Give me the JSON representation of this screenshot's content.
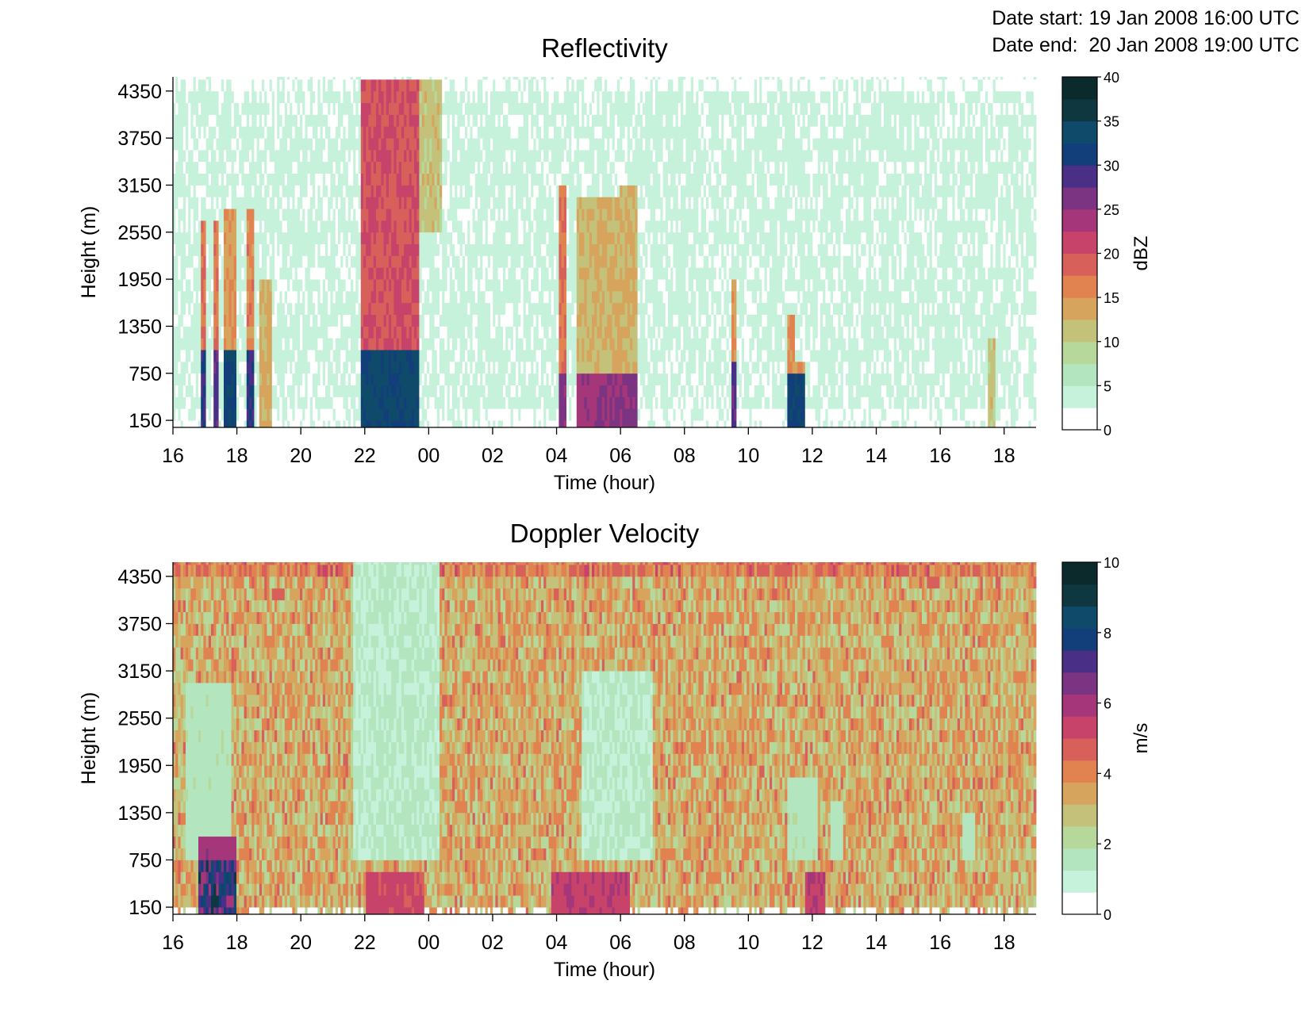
{
  "header": {
    "date_start_label": "Date start:",
    "date_start_value": "19 Jan 2008 16:00 UTC",
    "date_end_label": "Date end:",
    "date_end_value": "20 Jan 2008 19:00 UTC"
  },
  "chart_data": [
    {
      "type": "heatmap",
      "title": "Reflectivity",
      "xlabel": "Time (hour)",
      "ylabel": "Height (m)",
      "x_ticks": [
        "16",
        "18",
        "20",
        "22",
        "00",
        "02",
        "04",
        "06",
        "08",
        "10",
        "12",
        "14",
        "16",
        "18"
      ],
      "y_ticks": [
        "150",
        "750",
        "1350",
        "1950",
        "2550",
        "3150",
        "3750",
        "4350"
      ],
      "y_tick_values": [
        150,
        750,
        1350,
        1950,
        2550,
        3150,
        3750,
        4350
      ],
      "x_range_hours": [
        0,
        27
      ],
      "ylim": [
        60,
        4530
      ],
      "colorbar": {
        "label": "dBZ",
        "ticks": [
          "0",
          "5",
          "10",
          "15",
          "20",
          "25",
          "30",
          "35",
          "40"
        ],
        "min": 0,
        "max": 40,
        "levels": 16
      },
      "background_value": 3.5,
      "features": [
        {
          "t_start": 0.85,
          "t_end": 1.0,
          "h_top": 2700,
          "h_bot": 100,
          "value": 18,
          "core_value": 30,
          "core_h": 1100
        },
        {
          "t_start": 1.3,
          "t_end": 1.4,
          "h_top": 2700,
          "h_bot": 100,
          "value": 17,
          "core_value": 28,
          "core_h": 1100
        },
        {
          "t_start": 1.6,
          "t_end": 2.0,
          "h_top": 2850,
          "h_bot": 100,
          "value": 15,
          "core_value": 32,
          "core_h": 1100
        },
        {
          "t_start": 2.3,
          "t_end": 2.55,
          "h_top": 2850,
          "h_bot": 100,
          "value": 16,
          "core_value": 30,
          "core_h": 1100
        },
        {
          "t_start": 2.7,
          "t_end": 3.1,
          "h_top": 2000,
          "h_bot": 100,
          "value": 13,
          "core_value": 13,
          "core_h": 0
        },
        {
          "t_start": 5.9,
          "t_end": 7.7,
          "h_top": 4500,
          "h_bot": 100,
          "value": 20,
          "core_value": 33,
          "core_h": 1000
        },
        {
          "t_start": 7.7,
          "t_end": 8.4,
          "h_top": 4500,
          "h_bot": 2500,
          "value": 11,
          "core_value": 11,
          "core_h": 0
        },
        {
          "t_start": 12.1,
          "t_end": 12.3,
          "h_top": 3100,
          "h_bot": 100,
          "value": 17,
          "core_value": 26,
          "core_h": 800
        },
        {
          "t_start": 12.6,
          "t_end": 13.3,
          "h_top": 3000,
          "h_bot": 100,
          "value": 12,
          "core_value": 24,
          "core_h": 800
        },
        {
          "t_start": 13.2,
          "t_end": 14.0,
          "h_top": 3000,
          "h_bot": 100,
          "value": 13,
          "core_value": 25,
          "core_h": 800
        },
        {
          "t_start": 14.0,
          "t_end": 14.5,
          "h_top": 3200,
          "h_bot": 100,
          "value": 13,
          "core_value": 26,
          "core_h": 800
        },
        {
          "t_start": 17.5,
          "t_end": 17.65,
          "h_top": 2000,
          "h_bot": 100,
          "value": 15,
          "core_value": 28,
          "core_h": 900
        },
        {
          "t_start": 19.2,
          "t_end": 19.45,
          "h_top": 1500,
          "h_bot": 100,
          "value": 15,
          "core_value": 32,
          "core_h": 800
        },
        {
          "t_start": 19.45,
          "t_end": 19.75,
          "h_top": 900,
          "h_bot": 100,
          "value": 14,
          "core_value": 32,
          "core_h": 800
        },
        {
          "t_start": 25.5,
          "t_end": 25.7,
          "h_top": 1200,
          "h_bot": 100,
          "value": 11,
          "core_value": 11,
          "core_h": 0
        }
      ]
    },
    {
      "type": "heatmap",
      "title": "Doppler Velocity",
      "xlabel": "Time (hour)",
      "ylabel": "Height (m)",
      "x_ticks": [
        "16",
        "18",
        "20",
        "22",
        "00",
        "02",
        "04",
        "06",
        "08",
        "10",
        "12",
        "14",
        "16",
        "18"
      ],
      "y_ticks": [
        "150",
        "750",
        "1350",
        "1950",
        "2550",
        "3150",
        "3750",
        "4350"
      ],
      "y_tick_values": [
        150,
        750,
        1350,
        1950,
        2550,
        3150,
        3750,
        4350
      ],
      "x_range_hours": [
        0,
        27
      ],
      "ylim": [
        60,
        4530
      ],
      "colorbar": {
        "label": "m/s",
        "ticks": [
          "0",
          "2",
          "4",
          "6",
          "8",
          "10"
        ],
        "min": 0,
        "max": 10,
        "levels": 16
      },
      "background_value": 3.3,
      "features": [
        {
          "t_start": 5.6,
          "t_end": 8.3,
          "h_top": 4530,
          "h_bot": 750,
          "value": 1.3,
          "core_value": 1.3,
          "core_h": 0
        },
        {
          "t_start": 12.8,
          "t_end": 15.0,
          "h_top": 3200,
          "h_bot": 750,
          "value": 1.3,
          "core_value": 1.3,
          "core_h": 0
        },
        {
          "t_start": 0.4,
          "t_end": 1.8,
          "h_top": 3000,
          "h_bot": 750,
          "value": 1.6,
          "core_value": 1.6,
          "core_h": 0
        },
        {
          "t_start": 19.2,
          "t_end": 20.2,
          "h_top": 1800,
          "h_bot": 750,
          "value": 1.6,
          "core_value": 1.6,
          "core_h": 0
        },
        {
          "t_start": 20.6,
          "t_end": 21.0,
          "h_top": 1500,
          "h_bot": 750,
          "value": 1.6,
          "core_value": 1.6,
          "core_h": 0
        },
        {
          "t_start": 24.7,
          "t_end": 25.1,
          "h_top": 1300,
          "h_bot": 750,
          "value": 1.6,
          "core_value": 1.6,
          "core_h": 0
        },
        {
          "t_start": 0.8,
          "t_end": 2.0,
          "h_top": 1100,
          "h_bot": 100,
          "value": 6.0,
          "core_value": 7.5,
          "core_h": 800
        },
        {
          "t_start": 6.0,
          "t_end": 7.9,
          "h_top": 600,
          "h_bot": 100,
          "value": 5.2,
          "core_value": 5.2,
          "core_h": 0
        },
        {
          "t_start": 11.8,
          "t_end": 14.3,
          "h_top": 600,
          "h_bot": 100,
          "value": 5.5,
          "core_value": 5.5,
          "core_h": 0
        },
        {
          "t_start": 19.8,
          "t_end": 20.1,
          "h_top": 600,
          "h_bot": 100,
          "value": 5.5,
          "core_value": 5.5,
          "core_h": 0
        },
        {
          "t_start": 20.0,
          "t_end": 20.4,
          "h_top": 600,
          "h_bot": 100,
          "value": 5.5,
          "core_value": 5.5,
          "core_h": 0
        }
      ]
    }
  ],
  "colormap": [
    "#ffffff",
    "#c6f2dc",
    "#b3e6bf",
    "#b6d89a",
    "#c4c27a",
    "#d7a45e",
    "#e08350",
    "#d8605a",
    "#c7436a",
    "#a53679",
    "#7a3481",
    "#4a2f86",
    "#123f7a",
    "#0f4a6b",
    "#0e3740",
    "#0b2a2b",
    "#000000"
  ]
}
